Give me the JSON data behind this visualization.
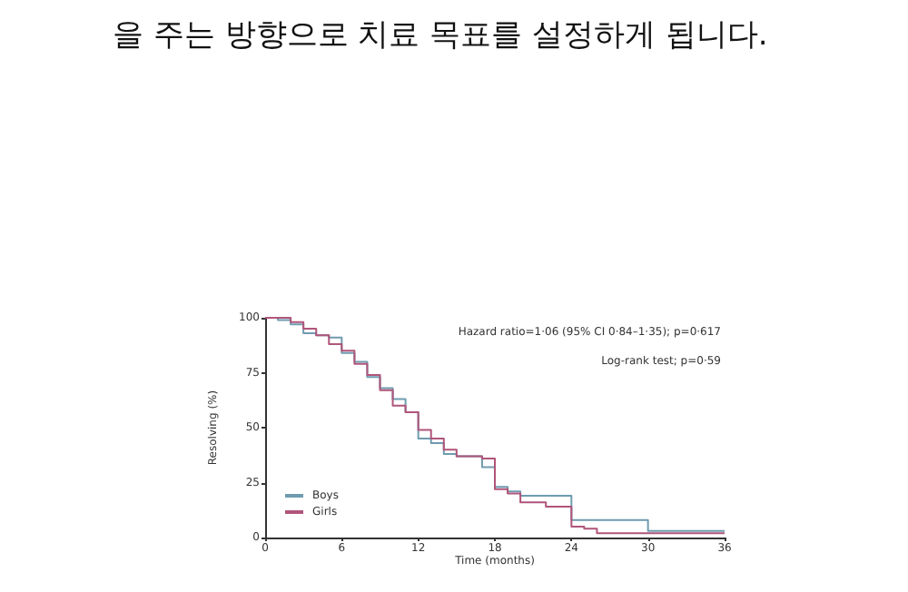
{
  "chart_data": {
    "type": "step",
    "title": "을 주는 방향으로 치료 목표를 설정하게 됩니다.",
    "xlabel": "Time (months)",
    "ylabel": "Resolving (%)",
    "annotations": [
      "Hazard ratio=1·06 (95% CI 0·84–1·35); p=0·617",
      "Log-rank test; p=0·59"
    ],
    "series": [
      {
        "name": "Boys",
        "color": "#6f9bb0",
        "x": [
          0,
          1,
          2,
          3,
          4,
          5,
          6,
          7,
          8,
          9,
          10,
          11,
          12,
          13,
          14,
          15,
          17,
          18,
          19,
          20,
          24,
          30,
          36
        ],
        "values": [
          100,
          99,
          97,
          93,
          92,
          91,
          84,
          80,
          73,
          68,
          63,
          57,
          45,
          43,
          38,
          37,
          32,
          23,
          21,
          19,
          8,
          3,
          3
        ]
      },
      {
        "name": "Girls",
        "color": "#b0557a",
        "x": [
          0,
          2,
          3,
          4,
          5,
          6,
          7,
          8,
          9,
          10,
          11,
          12,
          13,
          14,
          15,
          17,
          18,
          19,
          20,
          22,
          24,
          25,
          26,
          36
        ],
        "values": [
          100,
          98,
          95,
          92,
          88,
          85,
          79,
          74,
          67,
          60,
          57,
          49,
          45,
          40,
          37,
          36,
          22,
          20,
          16,
          14,
          5,
          4,
          2,
          2
        ]
      }
    ],
    "xlim": [
      0,
      36
    ],
    "xticks": [
      0,
      6,
      12,
      18,
      24,
      30,
      36
    ],
    "ylim": [
      0,
      100
    ],
    "yticks": [
      0,
      25,
      50,
      75,
      100
    ],
    "legend": "bottom left",
    "grid": false,
    "marker": "none",
    "line_style": "solid"
  }
}
